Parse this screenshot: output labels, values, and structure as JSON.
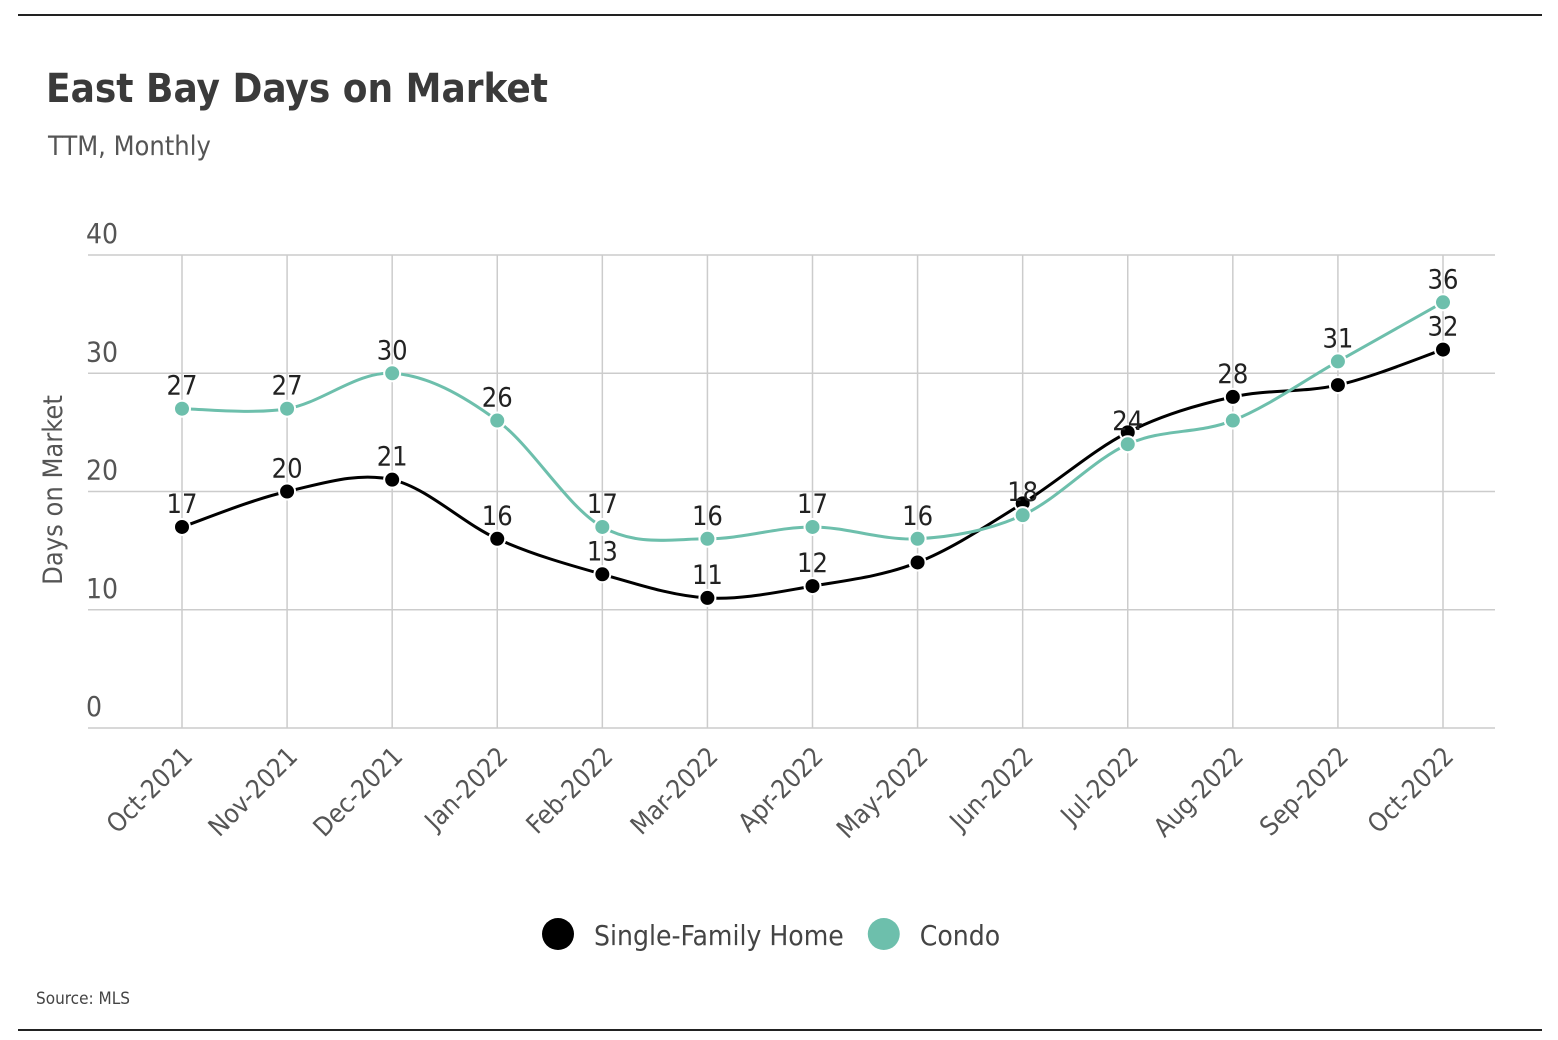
{
  "chart_data": {
    "type": "line",
    "title": "East Bay Days on Market",
    "subtitle": "TTM, Monthly",
    "y_label": "Days on Market",
    "source": "Source:  MLS",
    "categories": [
      "Oct-2021",
      "Nov-2021",
      "Dec-2021",
      "Jan-2022",
      "Feb-2022",
      "Mar-2022",
      "Apr-2022",
      "May-2022",
      "Jun-2022",
      "Jul-2022",
      "Aug-2022",
      "Sep-2022",
      "Oct-2022"
    ],
    "series": [
      {
        "name": "Single-Family Home",
        "color": "#000000",
        "values": [
          17,
          20,
          21,
          16,
          13,
          11,
          12,
          14,
          19,
          25,
          28,
          29,
          32
        ],
        "value_labels": [
          "17",
          "20",
          "21",
          "16",
          "13",
          "11",
          "12",
          null,
          null,
          null,
          "28",
          null,
          "32"
        ]
      },
      {
        "name": "Condo",
        "color": "#6dbfac",
        "values": [
          27,
          27,
          30,
          26,
          17,
          16,
          17,
          16,
          18,
          24,
          26,
          31,
          36
        ],
        "value_labels": [
          "27",
          "27",
          "30",
          "26",
          "17",
          "16",
          "17",
          "16",
          "18",
          "24",
          null,
          "31",
          "36"
        ]
      }
    ],
    "ylim": [
      0,
      40
    ],
    "yticks": [
      0,
      10,
      20,
      30,
      40
    ],
    "grid": true
  }
}
